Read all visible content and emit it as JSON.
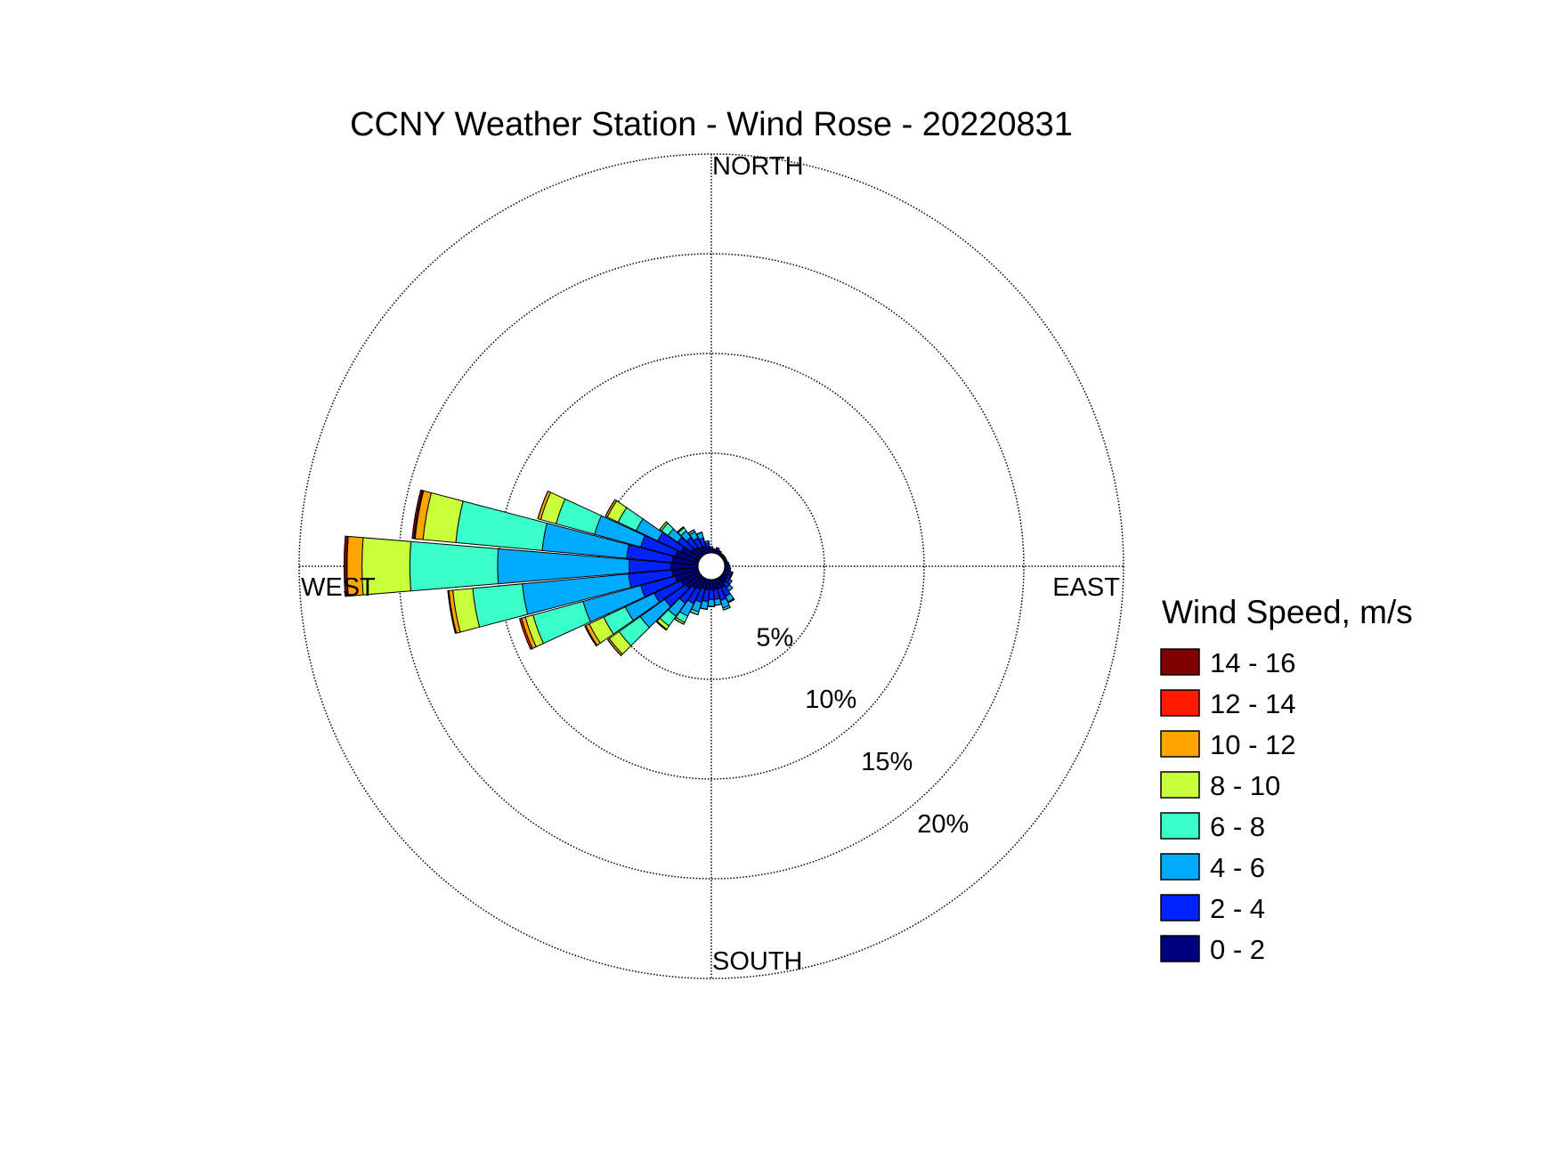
{
  "chart_data": {
    "type": "windrose",
    "title": "CCNY Weather Station - Wind Rose - 20220831",
    "direction_labels": {
      "north": "NORTH",
      "east": "EAST",
      "south": "SOUTH",
      "west": "WEST"
    },
    "legend_title": "Wind Speed, m/s",
    "rlim": [
      0,
      20
    ],
    "rticks": [
      {
        "value": 5,
        "label": "5%"
      },
      {
        "value": 10,
        "label": "10%"
      },
      {
        "value": 15,
        "label": "15%"
      },
      {
        "value": 20,
        "label": "20%"
      }
    ],
    "grid": true,
    "series": [
      {
        "name": "0 - 2",
        "color": "#00007f",
        "values": [
          0.2,
          0.15,
          0.2,
          0.15,
          0.1,
          0.1,
          0.1,
          0.1,
          0.15,
          0.15,
          0.2,
          0.25,
          0.25,
          0.3,
          0.35,
          0.5,
          0.5,
          0.5,
          0.5,
          0.5,
          0.5,
          0.6,
          0.7,
          0.9,
          1.0,
          1.2,
          1.3,
          1.35,
          1.3,
          1.2,
          1.0,
          0.6,
          0.5,
          0.4,
          0.4,
          0.3
        ]
      },
      {
        "name": "2 - 4",
        "color": "#0022ff",
        "values": [
          0.1,
          0.05,
          0.1,
          0.05,
          0.05,
          0.05,
          0.05,
          0.05,
          0.05,
          0.1,
          0.1,
          0.15,
          0.15,
          0.2,
          0.3,
          0.5,
          0.6,
          0.5,
          0.5,
          0.6,
          0.7,
          0.8,
          0.9,
          1.3,
          1.5,
          1.8,
          2.2,
          2.1,
          2.3,
          1.8,
          1.3,
          0.8,
          0.6,
          0.5,
          0.4,
          0.2
        ]
      },
      {
        "name": "4 - 6",
        "color": "#00aaff",
        "values": [
          0,
          0,
          0,
          0,
          0,
          0,
          0,
          0,
          0,
          0,
          0,
          0.05,
          0.05,
          0.1,
          0.2,
          0.3,
          0.4,
          0.3,
          0.35,
          0.4,
          0.5,
          0.7,
          0.8,
          1.5,
          1.6,
          3.0,
          5.35,
          6.6,
          4.25,
          2.4,
          1.2,
          0.6,
          0.4,
          0.35,
          0.3,
          0.1
        ]
      },
      {
        "name": "6 - 8",
        "color": "#3affc8",
        "values": [
          0,
          0,
          0,
          0,
          0,
          0,
          0,
          0,
          0,
          0,
          0,
          0,
          0,
          0,
          0,
          0.05,
          0.1,
          0,
          0,
          0,
          0.15,
          0.35,
          0.6,
          1.3,
          1.2,
          2.6,
          2.5,
          4.4,
          4.35,
          2,
          1.0,
          0.4,
          0.2,
          0.1,
          0,
          0
        ]
      },
      {
        "name": "8 - 10",
        "color": "#c8ff3a",
        "values": [
          0,
          0,
          0,
          0,
          0,
          0,
          0,
          0,
          0,
          0,
          0,
          0,
          0,
          0,
          0,
          0,
          0,
          0,
          0,
          0,
          0,
          0.1,
          0.2,
          0.6,
          0.8,
          0.4,
          1.0,
          2.4,
          1.65,
          0.8,
          0.6,
          0.1,
          0.05,
          0,
          0,
          0
        ]
      },
      {
        "name": "10 - 12",
        "color": "#ffa500",
        "values": [
          0,
          0,
          0,
          0,
          0,
          0,
          0,
          0,
          0,
          0,
          0,
          0,
          0,
          0,
          0,
          0,
          0,
          0,
          0,
          0,
          0,
          0,
          0.05,
          0.1,
          0.2,
          0.2,
          0.2,
          0.75,
          0.4,
          0.15,
          0.1,
          0,
          0,
          0,
          0,
          0
        ]
      },
      {
        "name": "12 - 14",
        "color": "#ff1a00",
        "values": [
          0,
          0,
          0,
          0,
          0,
          0,
          0,
          0,
          0,
          0,
          0,
          0,
          0,
          0,
          0,
          0,
          0,
          0,
          0,
          0,
          0,
          0,
          0,
          0,
          0.05,
          0.1,
          0.05,
          0,
          0.05,
          0,
          0,
          0,
          0,
          0,
          0,
          0
        ]
      },
      {
        "name": "14 - 16",
        "color": "#800000",
        "values": [
          0,
          0,
          0,
          0,
          0,
          0,
          0,
          0,
          0,
          0,
          0,
          0,
          0,
          0,
          0,
          0,
          0,
          0,
          0,
          0,
          0,
          0,
          0,
          0,
          0,
          0,
          0,
          0.15,
          0.1,
          0,
          0,
          0,
          0,
          0,
          0,
          0
        ]
      }
    ]
  }
}
